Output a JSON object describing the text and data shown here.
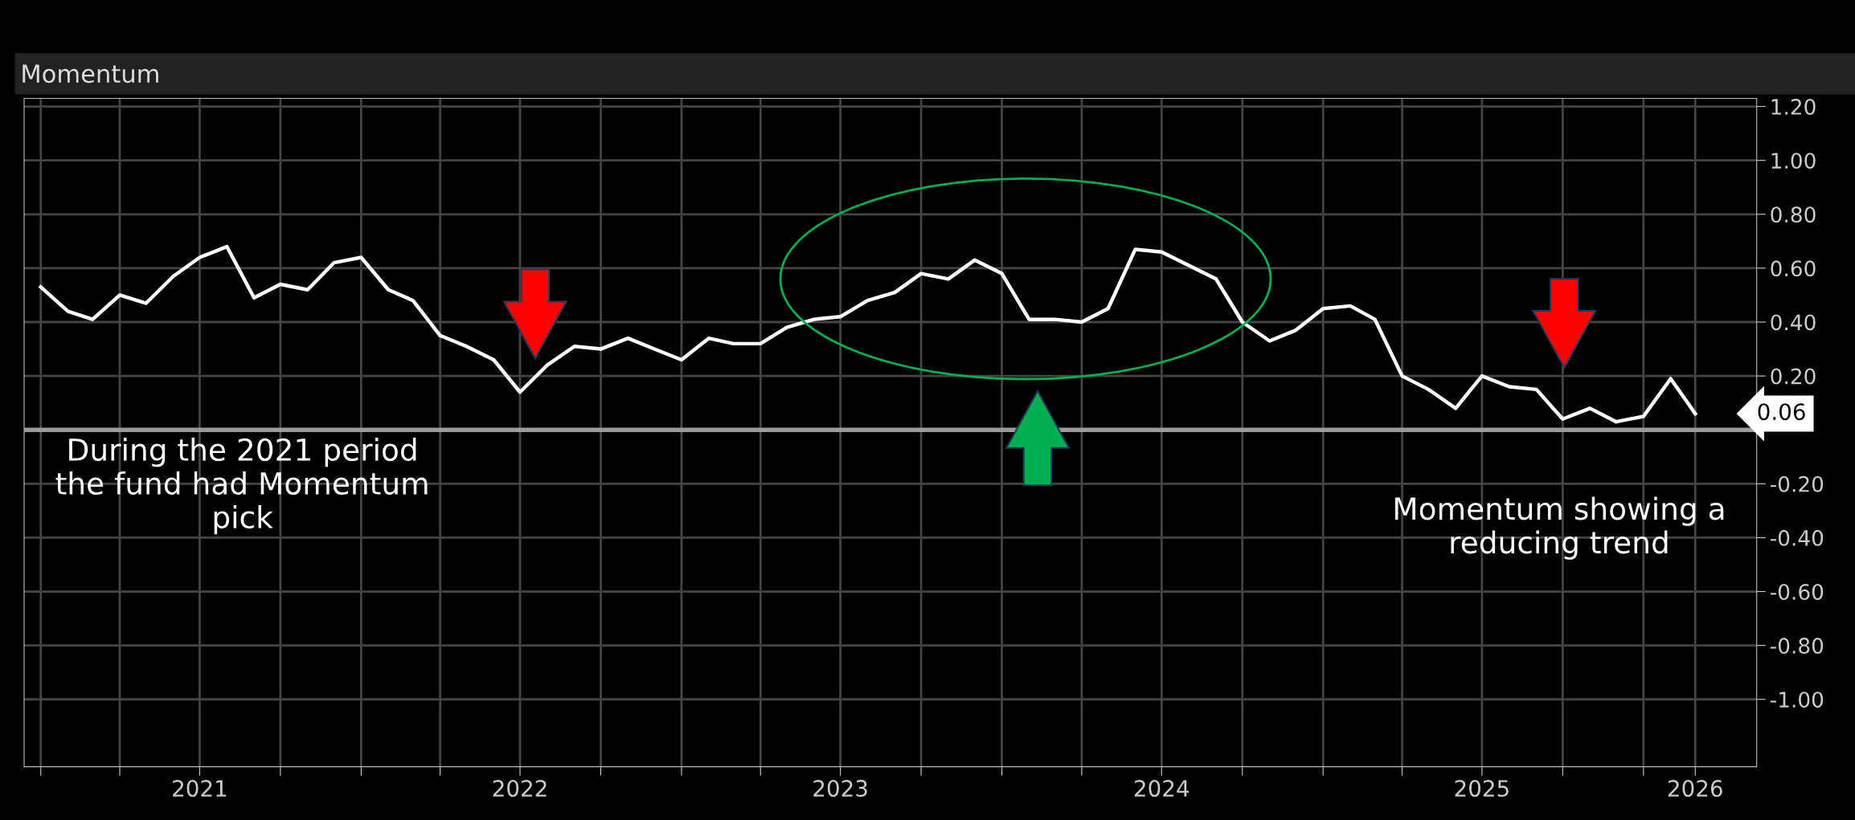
{
  "chart_data": {
    "type": "line",
    "title": "Momentum",
    "x": [
      "2021-01",
      "2021-02",
      "2021-03",
      "2021-04",
      "2021-05",
      "2021-06",
      "2021-07",
      "2021-08",
      "2021-09",
      "2021-10",
      "2021-11",
      "2021-12",
      "2022-01",
      "2022-02",
      "2022-03",
      "2022-04",
      "2022-05",
      "2022-06",
      "2022-07",
      "2022-08",
      "2022-09",
      "2022-10",
      "2022-11",
      "2022-12",
      "2023-01",
      "2023-02",
      "2023-03",
      "2023-04",
      "2023-05",
      "2023-06",
      "2023-07",
      "2023-08",
      "2023-09",
      "2023-10",
      "2023-11",
      "2023-12",
      "2024-01",
      "2024-02",
      "2024-03",
      "2024-04",
      "2024-05",
      "2024-06",
      "2024-07",
      "2024-08",
      "2024-09",
      "2024-10",
      "2024-11",
      "2024-12",
      "2025-01",
      "2025-02",
      "2025-03",
      "2025-04",
      "2025-05",
      "2025-06",
      "2025-07",
      "2025-08",
      "2025-09",
      "2025-10",
      "2025-11",
      "2025-12",
      "2026-01",
      "2026-02",
      "2026-03"
    ],
    "series": [
      {
        "color": "#ffffff",
        "values": [
          0.53,
          0.44,
          0.41,
          0.5,
          0.47,
          0.57,
          0.64,
          0.68,
          0.49,
          0.54,
          0.52,
          0.62,
          0.64,
          0.52,
          0.48,
          0.35,
          0.31,
          0.26,
          0.14,
          0.24,
          0.31,
          0.3,
          0.34,
          0.3,
          0.26,
          0.34,
          0.32,
          0.32,
          0.38,
          0.41,
          0.42,
          0.48,
          0.51,
          0.58,
          0.56,
          0.63,
          0.58,
          0.41,
          0.41,
          0.4,
          0.45,
          0.67,
          0.66,
          0.61,
          0.56,
          0.4,
          0.33,
          0.37,
          0.45,
          0.46,
          0.41,
          0.2,
          0.15,
          0.08,
          0.2,
          0.16,
          0.15,
          0.04,
          0.08,
          0.03,
          0.05,
          0.19,
          0.06
        ]
      }
    ],
    "xlim": [
      "2020-12-13",
      "2026-05-10"
    ],
    "xticks": [
      {
        "value": "2021-01-01",
        "label": null
      },
      {
        "value": "2021-04-01",
        "label": null
      },
      {
        "value": "2021-07-01",
        "label": "2021"
      },
      {
        "value": "2021-10-01",
        "label": null
      },
      {
        "value": "2022-01-01",
        "label": null
      },
      {
        "value": "2022-04-01",
        "label": null
      },
      {
        "value": "2022-07-01",
        "label": "2022"
      },
      {
        "value": "2022-10-01",
        "label": null
      },
      {
        "value": "2023-01-01",
        "label": null
      },
      {
        "value": "2023-04-01",
        "label": null
      },
      {
        "value": "2023-07-01",
        "label": "2023"
      },
      {
        "value": "2023-10-01",
        "label": null
      },
      {
        "value": "2024-01-01",
        "label": null
      },
      {
        "value": "2024-04-01",
        "label": null
      },
      {
        "value": "2024-07-01",
        "label": "2024"
      },
      {
        "value": "2024-10-01",
        "label": null
      },
      {
        "value": "2025-01-01",
        "label": null
      },
      {
        "value": "2025-04-01",
        "label": null
      },
      {
        "value": "2025-07-01",
        "label": "2025"
      },
      {
        "value": "2025-10-01",
        "label": null
      },
      {
        "value": "2026-01-01",
        "label": null
      },
      {
        "value": "2026-03-01",
        "label": "2026"
      }
    ],
    "ylim": [
      -1.25,
      1.23
    ],
    "yticks": [
      {
        "value": 1.2,
        "label": "1.20"
      },
      {
        "value": 1.0,
        "label": "1.00"
      },
      {
        "value": 0.8,
        "label": "0.80"
      },
      {
        "value": 0.6,
        "label": "0.60"
      },
      {
        "value": 0.4,
        "label": "0.40"
      },
      {
        "value": 0.2,
        "label": "0.20"
      },
      {
        "value": 0.0,
        "label": null
      },
      {
        "value": -0.2,
        "label": "-0.20"
      },
      {
        "value": -0.4,
        "label": "-0.40"
      },
      {
        "value": -0.6,
        "label": "-0.60"
      },
      {
        "value": -0.8,
        "label": "-0.80"
      },
      {
        "value": -1.0,
        "label": "-1.00"
      }
    ],
    "ref_lines": [
      {
        "axis": "y",
        "value": 0,
        "color": "#9a9a9a"
      }
    ],
    "annotations": [
      "During the 2021 period\nthe fund had Momentum\npick",
      "Momentum showing a\nreducing trend",
      {
        "text": "0.06",
        "x": "2026-03",
        "y": 0.06
      }
    ],
    "grid": true,
    "marker": "none",
    "line_style": "solid",
    "legend": false
  }
}
